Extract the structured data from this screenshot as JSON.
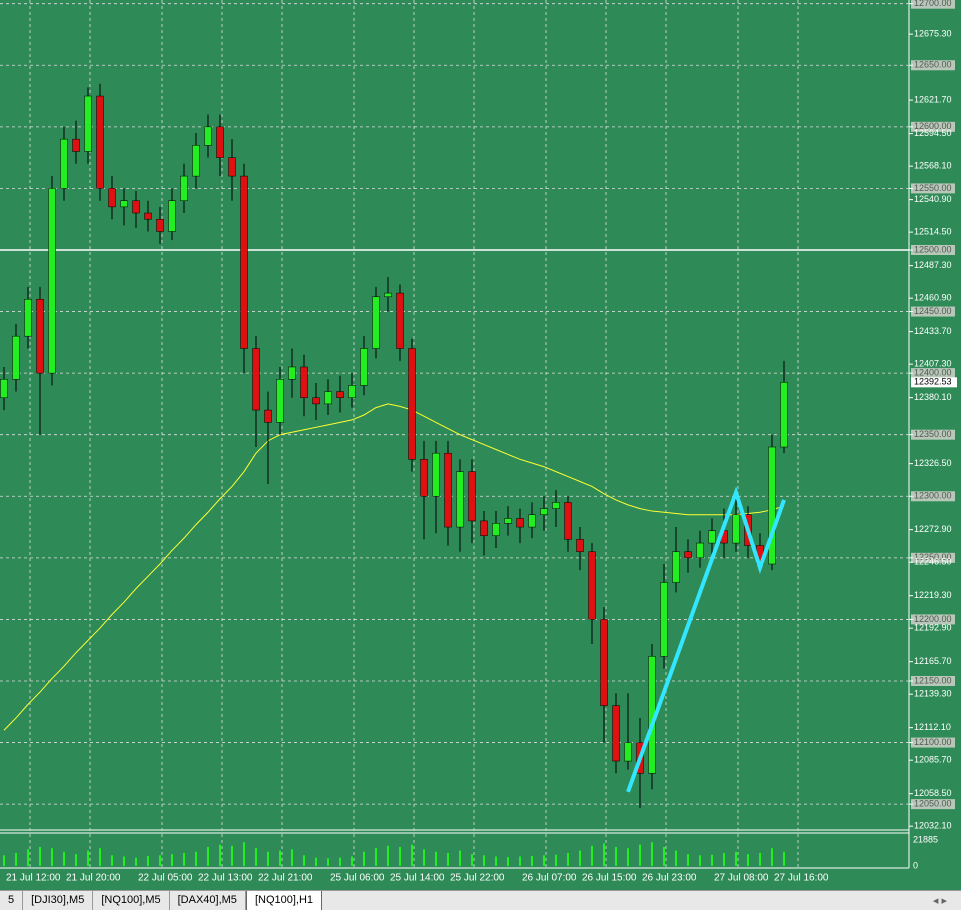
{
  "chart_data": {
    "type": "candlestick",
    "categories": [
      "21 Jul 12:00",
      null,
      null,
      null,
      null,
      "21 Jul 20:00",
      null,
      null,
      null,
      null,
      null,
      "22 Jul 05:00",
      null,
      null,
      null,
      null,
      "22 Jul 13:00",
      null,
      null,
      null,
      null,
      "22 Jul 21:00",
      null,
      null,
      null,
      null,
      null,
      "25 Jul 06:00",
      null,
      null,
      null,
      null,
      "25 Jul 14:00",
      null,
      null,
      null,
      null,
      "25 Jul 22:00",
      null,
      null,
      null,
      null,
      null,
      "26 Jul 07:00",
      null,
      null,
      null,
      null,
      "26 Jul 15:00",
      null,
      null,
      null,
      null,
      "26 Jul 23:00",
      null,
      null,
      null,
      null,
      null,
      "27 Jul 08:00",
      null,
      null,
      null,
      null,
      "27 Jul 16:00",
      null
    ],
    "open": [
      12380,
      12395,
      12430,
      12460,
      12400,
      12550,
      12590,
      12580,
      12625,
      12550,
      12535,
      12540,
      12530,
      12525,
      12515,
      12540,
      12560,
      12585,
      12600,
      12575,
      12560,
      12420,
      12370,
      12360,
      12395,
      12405,
      12380,
      12375,
      12385,
      12380,
      12390,
      12420,
      12462,
      12465,
      12420,
      12330,
      12300,
      12335,
      12275,
      12320,
      12280,
      12268,
      12278,
      12282,
      12275,
      12285,
      12290,
      12295,
      12265,
      12255,
      12200,
      12130,
      12085,
      12100,
      12075,
      12170,
      12230,
      12255,
      12250,
      12262,
      12272,
      12262,
      12285,
      12260,
      12245,
      12340
    ],
    "high": [
      12405,
      12440,
      12470,
      12470,
      12560,
      12600,
      12605,
      12632,
      12635,
      12560,
      12550,
      12548,
      12540,
      12535,
      12550,
      12570,
      12595,
      12610,
      12610,
      12590,
      12570,
      12430,
      12385,
      12405,
      12420,
      12415,
      12392,
      12395,
      12398,
      12400,
      12430,
      12470,
      12478,
      12472,
      12428,
      12345,
      12345,
      12345,
      12330,
      12330,
      12288,
      12288,
      12292,
      12290,
      12295,
      12300,
      12305,
      12300,
      12275,
      12262,
      12210,
      12140,
      12140,
      12120,
      12180,
      12245,
      12275,
      12265,
      12272,
      12282,
      12290,
      12300,
      12292,
      12270,
      12350,
      12410
    ],
    "low": [
      12370,
      12385,
      12420,
      12350,
      12390,
      12540,
      12570,
      12570,
      12540,
      12525,
      12520,
      12518,
      12515,
      12505,
      12508,
      12530,
      12550,
      12575,
      12560,
      12540,
      12400,
      12340,
      12310,
      12350,
      12380,
      12365,
      12362,
      12366,
      12368,
      12372,
      12382,
      12412,
      12450,
      12410,
      12320,
      12265,
      12270,
      12260,
      12255,
      12262,
      12252,
      12258,
      12268,
      12262,
      12266,
      12272,
      12275,
      12255,
      12240,
      12180,
      12100,
      12075,
      12078,
      12047,
      12062,
      12160,
      12222,
      12238,
      12242,
      12252,
      12250,
      12255,
      12250,
      12240,
      12240,
      12335
    ],
    "close": [
      12395,
      12430,
      12460,
      12400,
      12550,
      12590,
      12580,
      12625,
      12550,
      12535,
      12540,
      12530,
      12525,
      12515,
      12540,
      12560,
      12585,
      12600,
      12575,
      12560,
      12420,
      12370,
      12360,
      12395,
      12405,
      12380,
      12375,
      12385,
      12380,
      12390,
      12420,
      12462,
      12465,
      12420,
      12330,
      12300,
      12335,
      12275,
      12320,
      12280,
      12268,
      12278,
      12282,
      12275,
      12285,
      12290,
      12295,
      12265,
      12255,
      12200,
      12130,
      12085,
      12100,
      12075,
      12170,
      12230,
      12255,
      12250,
      12262,
      12272,
      12262,
      12285,
      12260,
      12245,
      12340,
      12392.53
    ],
    "volume": [
      9000,
      11000,
      14000,
      16000,
      15000,
      12000,
      10000,
      13000,
      15000,
      9000,
      8000,
      7000,
      8500,
      9000,
      10000,
      11000,
      12000,
      16000,
      18000,
      17000,
      20000,
      15000,
      12000,
      13000,
      14000,
      9000,
      7000,
      6500,
      7000,
      8000,
      12000,
      15000,
      17000,
      16000,
      18000,
      14000,
      12000,
      11000,
      13000,
      10000,
      9000,
      8000,
      7500,
      8000,
      8500,
      9000,
      9500,
      11000,
      13000,
      17000,
      19000,
      16000,
      15000,
      18000,
      20000,
      16000,
      13000,
      10000,
      9000,
      9500,
      11000,
      12000,
      10000,
      11000,
      15000,
      12000
    ],
    "ma": {
      "color": "#ffff33",
      "values": [
        12110,
        12120,
        12131,
        12141,
        12152,
        12162,
        12173,
        12183,
        12193,
        12204,
        12214,
        12225,
        12235,
        12245,
        12256,
        12266,
        12277,
        12287,
        12298,
        12308,
        12320,
        12335,
        12345,
        12350,
        12352,
        12354,
        12356,
        12358,
        12360,
        12362,
        12366,
        12372,
        12375,
        12373,
        12370,
        12365,
        12360,
        12355,
        12350,
        12346,
        12342,
        12338,
        12334,
        12330,
        12327,
        12324,
        12320,
        12316,
        12312,
        12308,
        12302,
        12297,
        12293,
        12290,
        12288,
        12287,
        12286,
        12285,
        12285,
        12285,
        12285,
        12285,
        12286,
        12287,
        12289,
        12292
      ]
    },
    "zigzag": {
      "color": "#33e6ff",
      "x": [
        52,
        61,
        63,
        65
      ],
      "values": [
        12060,
        12303,
        12242,
        12297
      ]
    },
    "hline": 12500,
    "up_color": "#22ee22",
    "down_color": "#dd1111",
    "ylim": [
      12029,
      12703
    ],
    "yticks": [
      {
        "value": 12700,
        "label": "12700.00"
      },
      {
        "value": 12675.3,
        "label": "12675.30"
      },
      {
        "value": 12650,
        "label": "12650.00"
      },
      {
        "value": 12621.7,
        "label": "12621.70"
      },
      {
        "value": 12600,
        "label": "12600.00"
      },
      {
        "value": 12594.5,
        "label": "12594.50"
      },
      {
        "value": 12568.1,
        "label": "12568.10"
      },
      {
        "value": 12550,
        "label": "12550.00"
      },
      {
        "value": 12540.9,
        "label": "12540.90"
      },
      {
        "value": 12514.5,
        "label": "12514.50"
      },
      {
        "value": 12500,
        "label": "12500.00"
      },
      {
        "value": 12487.3,
        "label": "12487.30"
      },
      {
        "value": 12460.9,
        "label": "12460.90"
      },
      {
        "value": 12450,
        "label": "12450.00"
      },
      {
        "value": 12433.7,
        "label": "12433.70"
      },
      {
        "value": 12407.3,
        "label": "12407.30"
      },
      {
        "value": 12400,
        "label": "12400.00"
      },
      {
        "value": 12380.1,
        "label": "12380.10"
      },
      {
        "value": 12350,
        "label": "12350.00"
      },
      {
        "value": 12326.5,
        "label": "12326.50"
      },
      {
        "value": 12300,
        "label": "12300.00"
      },
      {
        "value": 12272.9,
        "label": "12272.90"
      },
      {
        "value": 12250,
        "label": "12250.00"
      },
      {
        "value": 12246.5,
        "label": "12246.50"
      },
      {
        "value": 12219.3,
        "label": "12219.30"
      },
      {
        "value": 12200,
        "label": "12200.00"
      },
      {
        "value": 12192.9,
        "label": "12192.90"
      },
      {
        "value": 12165.7,
        "label": "12165.70"
      },
      {
        "value": 12150,
        "label": "12150.00"
      },
      {
        "value": 12139.3,
        "label": "12139.30"
      },
      {
        "value": 12112.1,
        "label": "12112.10"
      },
      {
        "value": 12100,
        "label": "12100.00"
      },
      {
        "value": 12085.7,
        "label": "12085.70"
      },
      {
        "value": 12058.5,
        "label": "12058.50"
      },
      {
        "value": 12050,
        "label": "12050.00"
      },
      {
        "value": 12032.1,
        "label": "12032.10"
      }
    ],
    "vol_ylim": [
      0,
      21885
    ],
    "vol_ticks": [
      21885,
      0
    ]
  },
  "tabs": [
    "5",
    "[DJI30],M5",
    "[NQ100],M5",
    "[DAX40],M5",
    "[NQ100],H1"
  ],
  "active_tab": 4
}
